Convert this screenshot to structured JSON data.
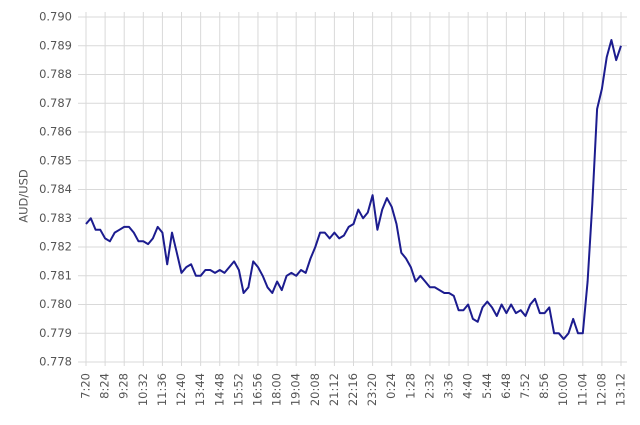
{
  "chart_data": {
    "type": "line",
    "y_label": "AUD/USD",
    "color": "#1c1c8f",
    "grid": true,
    "x": [
      "7:20",
      "7:36",
      "7:52",
      "8:08",
      "8:24",
      "8:40",
      "8:56",
      "9:12",
      "9:28",
      "9:44",
      "10:00",
      "10:16",
      "10:32",
      "10:48",
      "11:04",
      "11:20",
      "11:36",
      "11:52",
      "12:08",
      "12:24",
      "12:40",
      "12:56",
      "13:12",
      "13:28",
      "13:44",
      "14:00",
      "14:16",
      "14:32",
      "14:48",
      "15:04",
      "15:20",
      "15:36",
      "15:52",
      "16:08",
      "16:24",
      "16:40",
      "16:56",
      "17:12",
      "17:28",
      "17:44",
      "18:00",
      "18:16",
      "18:32",
      "18:48",
      "19:04",
      "19:20",
      "19:36",
      "19:52",
      "20:08",
      "20:24",
      "20:40",
      "20:56",
      "21:12",
      "21:28",
      "21:44",
      "22:00",
      "22:16",
      "22:32",
      "22:48",
      "23:04",
      "23:20",
      "23:36",
      "23:52",
      "0:08",
      "0:24",
      "0:40",
      "0:56",
      "1:12",
      "1:28",
      "1:44",
      "2:00",
      "2:16",
      "2:32",
      "2:48",
      "3:04",
      "3:20",
      "3:36",
      "3:52",
      "4:08",
      "4:24",
      "4:40",
      "4:56",
      "5:12",
      "5:28",
      "5:44",
      "6:00",
      "6:16",
      "6:32",
      "6:48",
      "7:04",
      "7:20",
      "7:36",
      "7:52",
      "8:08",
      "8:24",
      "8:40",
      "8:56",
      "9:12",
      "9:28",
      "9:44",
      "10:00",
      "10:16",
      "10:32",
      "10:48",
      "11:04",
      "11:20",
      "11:36",
      "11:52",
      "12:08",
      "12:24",
      "12:40",
      "12:56",
      "13:12"
    ],
    "values": [
      0.7828,
      0.783,
      0.7826,
      0.7826,
      0.7823,
      0.7822,
      0.7825,
      0.7826,
      0.7827,
      0.7827,
      0.7825,
      0.7822,
      0.7822,
      0.7821,
      0.7823,
      0.7827,
      0.7825,
      0.7814,
      0.7825,
      0.7818,
      0.7811,
      0.7813,
      0.7814,
      0.781,
      0.781,
      0.7812,
      0.7812,
      0.7811,
      0.7812,
      0.7811,
      0.7813,
      0.7815,
      0.7812,
      0.7804,
      0.7806,
      0.7815,
      0.7813,
      0.781,
      0.7806,
      0.7804,
      0.7808,
      0.7805,
      0.781,
      0.7811,
      0.781,
      0.7812,
      0.7811,
      0.7816,
      0.782,
      0.7825,
      0.7825,
      0.7823,
      0.7825,
      0.7823,
      0.7824,
      0.7827,
      0.7828,
      0.7833,
      0.783,
      0.7832,
      0.7838,
      0.7826,
      0.7833,
      0.7837,
      0.7834,
      0.7828,
      0.7818,
      0.7816,
      0.7813,
      0.7808,
      0.781,
      0.7808,
      0.7806,
      0.7806,
      0.7805,
      0.7804,
      0.7804,
      0.7803,
      0.7798,
      0.7798,
      0.78,
      0.7795,
      0.7794,
      0.7799,
      0.7801,
      0.7799,
      0.7796,
      0.78,
      0.7797,
      0.78,
      0.7797,
      0.7798,
      0.7796,
      0.78,
      0.7802,
      0.7797,
      0.7797,
      0.7799,
      0.779,
      0.779,
      0.7788,
      0.779,
      0.7795,
      0.779,
      0.779,
      0.7808,
      0.7835,
      0.7868,
      0.7875,
      0.7886,
      0.7892,
      0.7885,
      0.789
    ],
    "xticks": [
      "7:20",
      "8:24",
      "9:28",
      "10:32",
      "11:36",
      "12:40",
      "13:44",
      "14:48",
      "15:52",
      "16:56",
      "18:00",
      "19:04",
      "20:08",
      "21:12",
      "22:16",
      "23:20",
      "0:24",
      "1:28",
      "2:32",
      "3:36",
      "4:40",
      "5:44",
      "6:48",
      "7:52",
      "8:56",
      "10:00",
      "11:04",
      "12:08",
      "13:12"
    ],
    "ylim": [
      0.778,
      0.79
    ],
    "yticks": [
      0.778,
      0.779,
      {
        "value": 0.78,
        "label": "0.780"
      },
      0.781,
      0.782,
      0.783,
      0.784,
      0.785,
      0.786,
      0.787,
      0.788,
      0.789,
      {
        "value": 0.79,
        "label": "0.790"
      }
    ]
  }
}
